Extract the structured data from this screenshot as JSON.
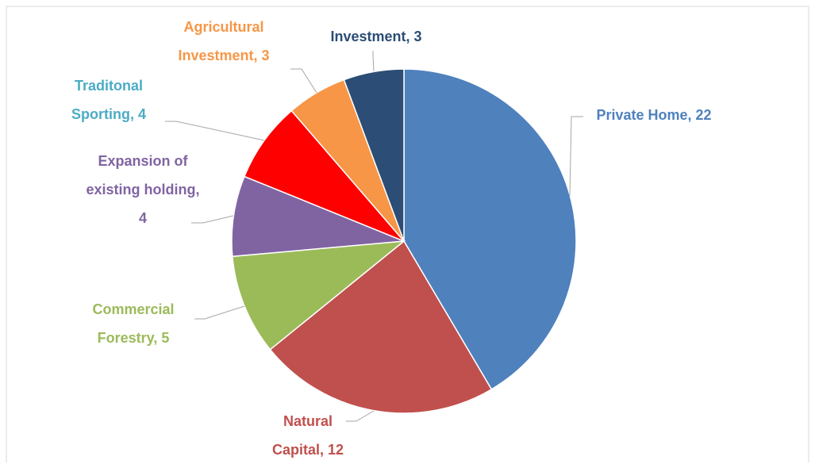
{
  "chart_data": {
    "type": "pie",
    "categories": [
      "Private Home",
      "Natural Capital",
      "Commercial Forestry",
      "Expansion of existing holding",
      "Traditonal Sporting",
      "Agricultural Investment",
      "Investment"
    ],
    "values": [
      22,
      12,
      5,
      4,
      4,
      3,
      3
    ],
    "colors": [
      "#4f81bd",
      "#c0504d",
      "#9bbb59",
      "#8064a2",
      "#ff0000",
      "#f79646",
      "#2c4d75"
    ],
    "label_colors": [
      "#4f81bd",
      "#c0504d",
      "#9bbb59",
      "#8064a2",
      "#4bacc6",
      "#f79646",
      "#2c4d75"
    ]
  }
}
